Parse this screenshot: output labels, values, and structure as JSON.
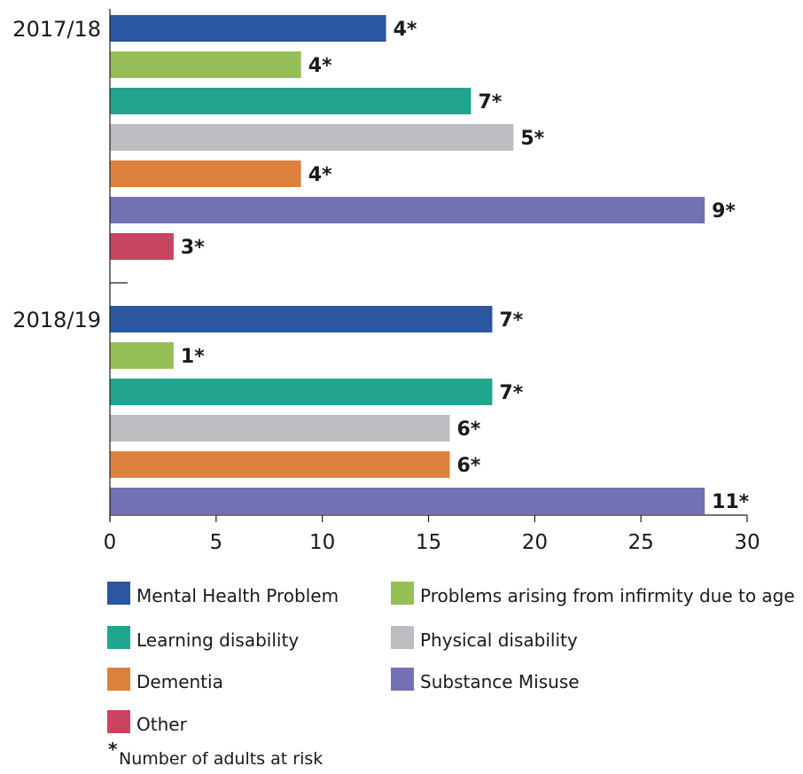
{
  "chart_data": {
    "type": "bar",
    "orientation": "horizontal",
    "categories": [
      "2017/18",
      "2018/19"
    ],
    "series": [
      {
        "name": "Mental Health Problem",
        "color": "#2b56a0",
        "values": [
          13,
          18
        ],
        "labels": [
          "4*",
          "7*"
        ]
      },
      {
        "name": "Problems arising from infirmity due to age",
        "color": "#96bf57",
        "values": [
          9,
          3
        ],
        "labels": [
          "4*",
          "1*"
        ]
      },
      {
        "name": "Learning disability",
        "color": "#22a58e",
        "values": [
          17,
          18
        ],
        "labels": [
          "7*",
          "7*"
        ]
      },
      {
        "name": "Physical disability",
        "color": "#bcbdc0",
        "values": [
          19,
          16
        ],
        "labels": [
          "5*",
          "6*"
        ]
      },
      {
        "name": "Dementia",
        "color": "#dc823e",
        "values": [
          9,
          16
        ],
        "labels": [
          "4*",
          "6*"
        ]
      },
      {
        "name": "Substance Misuse",
        "color": "#7371b3",
        "values": [
          28,
          28
        ],
        "labels": [
          "9*",
          "11*"
        ]
      },
      {
        "name": "Other",
        "color": "#c9445f",
        "values": [
          3,
          null
        ],
        "labels": [
          "3*",
          null
        ]
      }
    ],
    "xlim": [
      0,
      30
    ],
    "xticks": [
      0,
      5,
      10,
      15,
      20,
      25,
      30
    ],
    "tick_labels": [
      "0",
      "5",
      "10",
      "15",
      "20",
      "25",
      "30"
    ],
    "grid": false,
    "legend_position": "bottom",
    "footnote": {
      "marker": "*",
      "text": "Number of adults at risk"
    }
  }
}
